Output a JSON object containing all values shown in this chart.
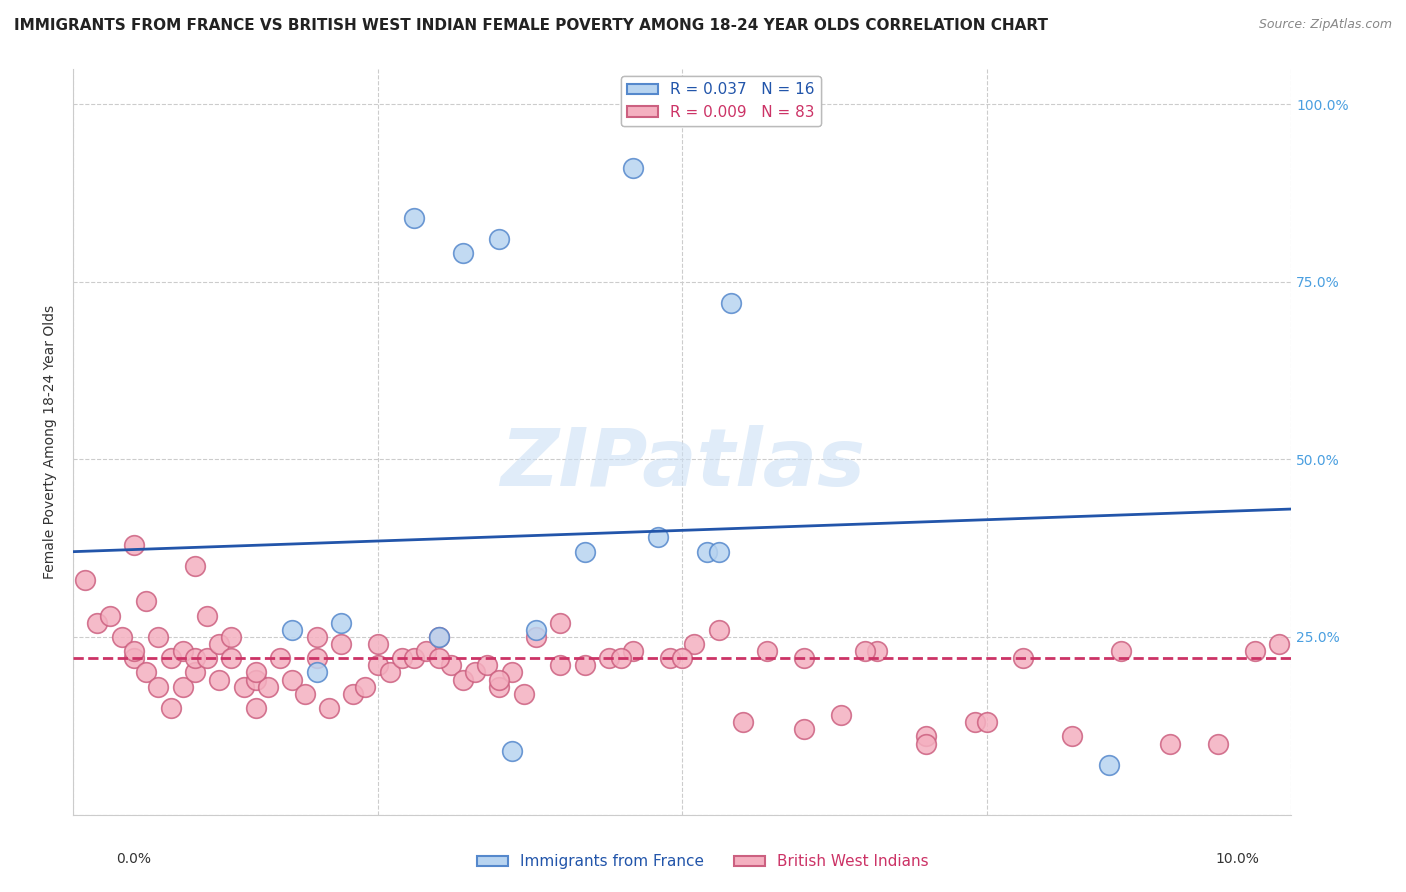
{
  "title": "IMMIGRANTS FROM FRANCE VS BRITISH WEST INDIAN FEMALE POVERTY AMONG 18-24 YEAR OLDS CORRELATION CHART",
  "source": "Source: ZipAtlas.com",
  "ylabel": "Female Poverty Among 18-24 Year Olds",
  "xlim": [
    0.0,
    0.1
  ],
  "ylim": [
    0.0,
    1.05
  ],
  "watermark_text": "ZIPatlas",
  "legend_france": "R = 0.037   N = 16",
  "legend_bwi": "R = 0.009   N = 83",
  "legend_france_label": "Immigrants from France",
  "legend_bwi_label": "British West Indians",
  "france_color": "#b8d4f0",
  "france_edge": "#5588cc",
  "bwi_color": "#f4b0c0",
  "bwi_edge": "#cc6080",
  "trendline_france_color": "#2255aa",
  "trendline_bwi_color": "#cc3366",
  "france_x": [
    0.028,
    0.032,
    0.035,
    0.046,
    0.054,
    0.048,
    0.022,
    0.03,
    0.042,
    0.052,
    0.036,
    0.085,
    0.053,
    0.018,
    0.02,
    0.038
  ],
  "france_y": [
    0.84,
    0.79,
    0.81,
    0.91,
    0.72,
    0.39,
    0.27,
    0.25,
    0.37,
    0.37,
    0.09,
    0.07,
    0.37,
    0.26,
    0.2,
    0.26
  ],
  "bwi_x": [
    0.001,
    0.002,
    0.003,
    0.004,
    0.005,
    0.005,
    0.006,
    0.006,
    0.007,
    0.007,
    0.008,
    0.008,
    0.009,
    0.009,
    0.01,
    0.01,
    0.011,
    0.011,
    0.012,
    0.012,
    0.013,
    0.013,
    0.014,
    0.015,
    0.015,
    0.016,
    0.017,
    0.018,
    0.019,
    0.02,
    0.021,
    0.022,
    0.023,
    0.024,
    0.025,
    0.026,
    0.027,
    0.028,
    0.029,
    0.03,
    0.031,
    0.032,
    0.033,
    0.034,
    0.035,
    0.036,
    0.037,
    0.038,
    0.04,
    0.042,
    0.044,
    0.046,
    0.049,
    0.051,
    0.053,
    0.057,
    0.06,
    0.063,
    0.066,
    0.07,
    0.074,
    0.078,
    0.082,
    0.086,
    0.09,
    0.094,
    0.097,
    0.099,
    0.005,
    0.01,
    0.015,
    0.02,
    0.025,
    0.03,
    0.035,
    0.04,
    0.045,
    0.05,
    0.055,
    0.06,
    0.065,
    0.07,
    0.075
  ],
  "bwi_y": [
    0.33,
    0.27,
    0.28,
    0.25,
    0.22,
    0.23,
    0.3,
    0.2,
    0.25,
    0.18,
    0.22,
    0.15,
    0.23,
    0.18,
    0.2,
    0.22,
    0.28,
    0.22,
    0.19,
    0.24,
    0.22,
    0.25,
    0.18,
    0.19,
    0.15,
    0.18,
    0.22,
    0.19,
    0.17,
    0.22,
    0.15,
    0.24,
    0.17,
    0.18,
    0.21,
    0.2,
    0.22,
    0.22,
    0.23,
    0.25,
    0.21,
    0.19,
    0.2,
    0.21,
    0.18,
    0.2,
    0.17,
    0.25,
    0.21,
    0.21,
    0.22,
    0.23,
    0.22,
    0.24,
    0.26,
    0.23,
    0.22,
    0.14,
    0.23,
    0.11,
    0.13,
    0.22,
    0.11,
    0.23,
    0.1,
    0.1,
    0.23,
    0.24,
    0.38,
    0.35,
    0.2,
    0.25,
    0.24,
    0.22,
    0.19,
    0.27,
    0.22,
    0.22,
    0.13,
    0.12,
    0.23,
    0.1,
    0.13
  ],
  "france_trend_x": [
    0.0,
    0.1
  ],
  "france_trend_y": [
    0.37,
    0.43
  ],
  "bwi_trend_x": [
    0.0,
    0.1
  ],
  "bwi_trend_y": [
    0.22,
    0.22
  ],
  "grid_color": "#cccccc",
  "background_color": "#ffffff",
  "title_fontsize": 11,
  "axis_label_fontsize": 10,
  "tick_fontsize": 10,
  "legend_fontsize": 11,
  "right_tick_color": "#4a9fe0"
}
